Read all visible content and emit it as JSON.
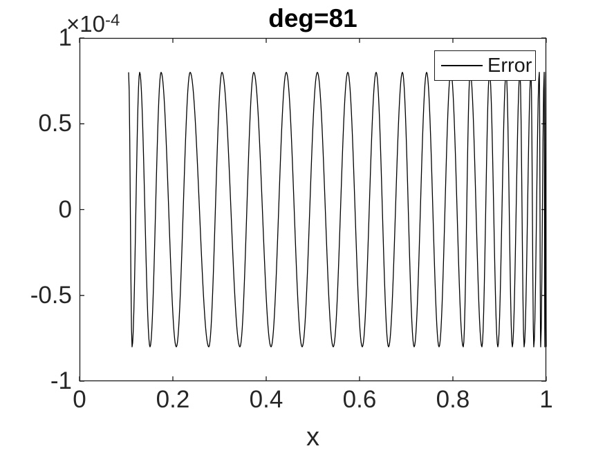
{
  "figure": {
    "title": "deg=81",
    "x_axis_label": "x",
    "y_exponent_base": "×10",
    "y_exponent_power": "-4",
    "legend_label": "Error",
    "colors": {
      "line": "#000000",
      "axis": "#1a1a1a",
      "text": "#262626",
      "title_text": "#000000",
      "background": "#ffffff"
    }
  },
  "chart_data": {
    "type": "line",
    "title": "deg=81",
    "xlabel": "x",
    "ylabel": "",
    "xlim": [
      0,
      1
    ],
    "ylim": [
      -0.0001,
      0.0001
    ],
    "xticks": [
      0,
      0.2,
      0.4,
      0.6,
      0.8,
      1
    ],
    "xtick_labels": [
      "0",
      "0.2",
      "0.4",
      "0.6",
      "0.8",
      "1"
    ],
    "yticks": [
      -0.0001,
      -5e-05,
      0,
      5e-05,
      0.0001
    ],
    "ytick_labels": [
      "-1",
      "-0.5",
      "0",
      "0.5",
      "1"
    ],
    "y_exponent": -4,
    "grid": false,
    "box": true,
    "legend_position": "top-right",
    "legend_entries": [
      "Error"
    ],
    "series": [
      {
        "name": "Error",
        "color": "#000000",
        "description": "Equioscillating approximation error: alternating extrema of amplitude 8e-05 (first extremum is a maximum at x=0.1052, last point at x=1 is a minimum); oscillation compressed near both ends of [0.105, 1].",
        "amplitude": 8e-05,
        "start_sign": 1,
        "extrema_x": [
          0.1052,
          0.1126,
          0.1289,
          0.1511,
          0.1748,
          0.2074,
          0.237,
          0.277,
          0.3052,
          0.3437,
          0.3733,
          0.4104,
          0.443,
          0.477,
          0.5096,
          0.5437,
          0.5748,
          0.6059,
          0.6356,
          0.6622,
          0.6919,
          0.717,
          0.7437,
          0.7704,
          0.7956,
          0.8222,
          0.837,
          0.8622,
          0.8785,
          0.8963,
          0.9141,
          0.9274,
          0.9437,
          0.9526,
          0.9674,
          0.9733,
          0.9852,
          0.9881,
          0.9956,
          0.997,
          0.999,
          1.0
        ]
      }
    ]
  }
}
